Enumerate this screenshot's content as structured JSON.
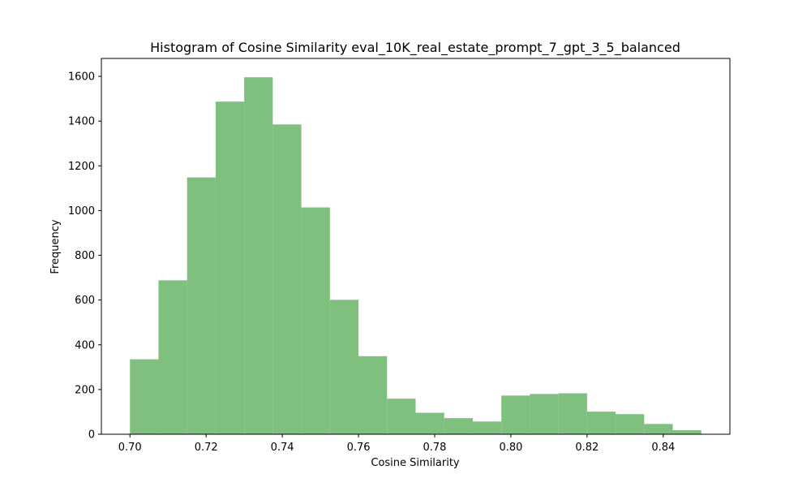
{
  "chart_data": {
    "type": "bar",
    "title": "Histogram of Cosine Similarity eval_10K_real_estate_prompt_7_gpt_3_5_balanced",
    "xlabel": "Cosine Similarity",
    "ylabel": "Frequency",
    "xlim": [
      0.6925,
      0.8575
    ],
    "ylim": [
      0,
      1680
    ],
    "xticks": [
      "0.70",
      "0.72",
      "0.74",
      "0.76",
      "0.78",
      "0.80",
      "0.82",
      "0.84"
    ],
    "yticks": [
      "0",
      "200",
      "400",
      "600",
      "800",
      "1000",
      "1200",
      "1400",
      "1600"
    ],
    "grid": false,
    "bar_color": "#7fc07f",
    "bins": [
      {
        "x0": 0.7,
        "x1": 0.7075,
        "value": 335
      },
      {
        "x0": 0.7075,
        "x1": 0.715,
        "value": 688
      },
      {
        "x0": 0.715,
        "x1": 0.7225,
        "value": 1148
      },
      {
        "x0": 0.7225,
        "x1": 0.73,
        "value": 1487
      },
      {
        "x0": 0.73,
        "x1": 0.7375,
        "value": 1596
      },
      {
        "x0": 0.7375,
        "x1": 0.745,
        "value": 1385
      },
      {
        "x0": 0.745,
        "x1": 0.7525,
        "value": 1014
      },
      {
        "x0": 0.7525,
        "x1": 0.76,
        "value": 601
      },
      {
        "x0": 0.76,
        "x1": 0.7675,
        "value": 349
      },
      {
        "x0": 0.7675,
        "x1": 0.775,
        "value": 159
      },
      {
        "x0": 0.775,
        "x1": 0.7825,
        "value": 96
      },
      {
        "x0": 0.7825,
        "x1": 0.79,
        "value": 72
      },
      {
        "x0": 0.79,
        "x1": 0.7975,
        "value": 57
      },
      {
        "x0": 0.7975,
        "x1": 0.805,
        "value": 173
      },
      {
        "x0": 0.805,
        "x1": 0.8125,
        "value": 180
      },
      {
        "x0": 0.8125,
        "x1": 0.82,
        "value": 183
      },
      {
        "x0": 0.82,
        "x1": 0.8275,
        "value": 101
      },
      {
        "x0": 0.8275,
        "x1": 0.835,
        "value": 90
      },
      {
        "x0": 0.835,
        "x1": 0.8425,
        "value": 46
      },
      {
        "x0": 0.8425,
        "x1": 0.85,
        "value": 18
      }
    ]
  }
}
